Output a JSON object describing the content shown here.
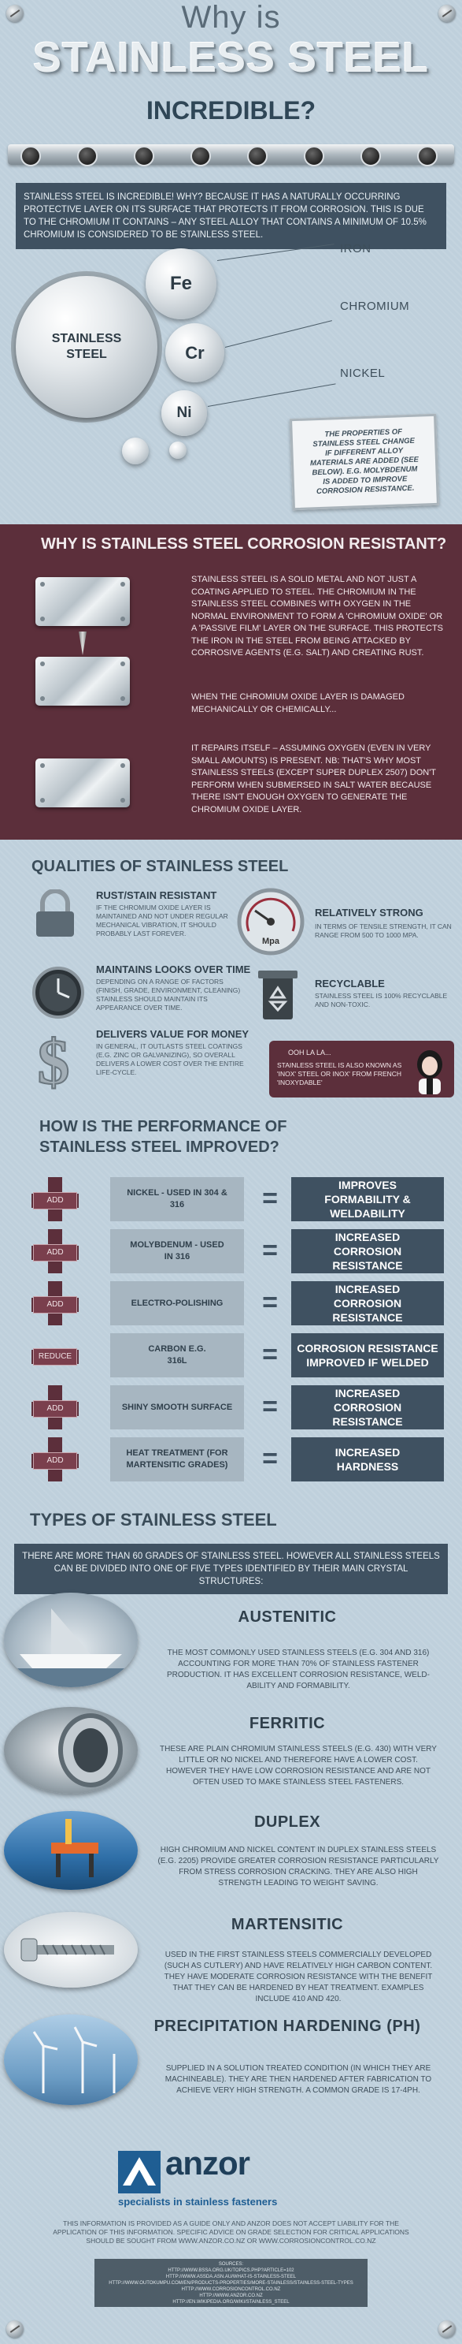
{
  "header": {
    "line1": "Why is",
    "line2": "STAINLESS STEEL",
    "line3": "INCREDIBLE?"
  },
  "intro": "STAINLESS STEEL IS INCREDIBLE! WHY? BECAUSE IT HAS A NATURALLY OCCURRING PROTECTIVE LAYER ON ITS SURFACE THAT PROTECTS IT FROM CORROSION. THIS IS DUE TO THE CHROMIUM IT CONTAINS – ANY STEEL ALLOY THAT CONTAINS A MINIMUM OF 10.5% CHROMIUM IS CONSIDERED TO BE STAINLESS STEEL.",
  "gears": {
    "main": "STAINLESS STEEL",
    "fe": "Fe",
    "cr": "Cr",
    "ni": "Ni",
    "iron": "IRON",
    "chromium": "CHROMIUM",
    "nickel": "NICKEL",
    "note": "THE PROPERTIES OF STAINLESS STEEL CHANGE IF DIFFERENT ALLOY MATERIALS ARE ADDED (SEE BELOW). E.G. MOLYBDENUM IS ADDED TO IMPROVE CORROSION RESISTANCE."
  },
  "corrosion": {
    "title": "WHY IS STAINLESS STEEL CORROSION RESISTANT?",
    "p1": "STAINLESS STEEL IS A SOLID METAL AND NOT JUST A COATING APPLIED TO STEEL. THE CHROMIUM IN THE STAINLESS STEEL COMBINES WITH OXYGEN IN THE NORMAL ENVIRONMENT TO FORM A 'CHROMIUM OXIDE' OR A 'PASSIVE FILM' LAYER ON THE SURFACE. THIS PROTECTS THE IRON IN THE STEEL FROM BEING ATTACKED BY CORROSIVE AGENTS (E.G. SALT) AND CREATING RUST.",
    "p2": "WHEN THE CHROMIUM OXIDE LAYER IS DAMAGED MECHANICALLY OR CHEMICALLY...",
    "p3": "IT REPAIRS ITSELF – ASSUMING OXYGEN (EVEN IN VERY SMALL AMOUNTS) IS PRESENT. NB: THAT'S WHY MOST STAINLESS STEELS (EXCEPT SUPER DUPLEX 2507) DON'T PERFORM WHEN SUBMERSED IN SALT WATER BECAUSE THERE ISN'T ENOUGH OXYGEN TO GENERATE THE CHROMIUM OXIDE LAYER."
  },
  "qualities": {
    "title": "QUALITIES OF STAINLESS STEEL",
    "items": [
      {
        "title": "RUST/STAIN RESISTANT",
        "text": "IF THE CHROMIUM OXIDE LAYER IS MAINTAINED AND NOT UNDER REGULAR MECHANICAL VIBRATION, IT SHOULD PROBABLY LAST FOREVER."
      },
      {
        "title": "RELATIVELY STRONG",
        "text": "IN TERMS OF TENSILE STRENGTH, IT CAN RANGE FROM 500 TO 1000 MPA."
      },
      {
        "title": "MAINTAINS LOOKS OVER TIME",
        "text": "DEPENDING ON A RANGE OF FACTORS (FINISH, GRADE, ENVIRONMENT, CLEANING) STAINLESS SHOULD MAINTAIN ITS APPEARANCE OVER TIME."
      },
      {
        "title": "RECYCLABLE",
        "text": "STAINLESS STEEL IS 100% RECYCLABLE AND NON-TOXIC."
      },
      {
        "title": "DELIVERS VALUE FOR MONEY",
        "text": "IN GENERAL, IT OUTLASTS STEEL COATINGS (E.G. ZINC OR GALVANIZING), SO OVERALL DELIVERS A LOWER COST OVER THE ENTIRE LIFE-CYCLE."
      }
    ],
    "gauge_unit": "Mpa",
    "ooh_title": "OOH LA LA...",
    "ooh_text": "STAINLESS STEEL IS ALSO KNOWN AS 'INOX' STEEL OR INOX' FROM FRENCH 'INOXYDABLE'"
  },
  "performance": {
    "title": "HOW IS THE PERFORMANCE OF STAINLESS STEEL IMPROVED?",
    "rows": [
      {
        "badge": "ADD",
        "left": "NICKEL - USED IN 304 & 316",
        "eq": "=",
        "right": "IMPROVES FORMABILITY & WELDABILITY"
      },
      {
        "badge": "ADD",
        "left": "MOLYBDENUM - USED IN 316",
        "eq": "=",
        "right": "INCREASED CORROSION RESISTANCE"
      },
      {
        "badge": "ADD",
        "left": "ELECTRO-POLISHING",
        "eq": "=",
        "right": "INCREASED CORROSION RESISTANCE"
      },
      {
        "badge": "REDUCE",
        "left": "CARBON E.G. 316L",
        "eq": "=",
        "right": "CORROSION RESISTANCE IMPROVED IF WELDED"
      },
      {
        "badge": "ADD",
        "left": "SHINY SMOOTH SURFACE",
        "eq": "=",
        "right": "INCREASED CORROSION RESISTANCE"
      },
      {
        "badge": "ADD",
        "left": "HEAT TREATMENT (FOR MARTENSITIC GRADES)",
        "eq": "=",
        "right": "INCREASED HARDNESS"
      }
    ]
  },
  "types": {
    "title": "TYPES OF STAINLESS STEEL",
    "intro": "THERE ARE MORE THAN 60 GRADES OF STAINLESS STEEL. HOWEVER ALL STAINLESS STEELS CAN BE DIVIDED INTO ONE OF FIVE TYPES IDENTIFIED BY THEIR MAIN CRYSTAL STRUCTURES:",
    "items": [
      {
        "name": "AUSTENITIC",
        "text": "THE MOST COMMONLY USED STAINLESS STEELS (E.G. 304 AND 316) ACCOUNTING FOR MORE THAN 70% OF STAINLESS FASTENER PRODUCTION. IT HAS EXCELLENT CORROSION RESISTANCE, WELD-ABILITY AND FORMABILITY."
      },
      {
        "name": "FERRITIC",
        "text": "THESE ARE PLAIN CHROMIUM STAINLESS STEELS (E.G. 430) WITH VERY LITTLE OR NO NICKEL AND THEREFORE HAVE A LOWER COST. HOWEVER THEY HAVE LOW CORROSION RESISTANCE AND ARE NOT OFTEN USED TO MAKE STAINLESS STEEL FASTENERS."
      },
      {
        "name": "DUPLEX",
        "text": "HIGH CHROMIUM AND NICKEL CONTENT IN DUPLEX STAINLESS STEELS (E.G. 2205) PROVIDE GREATER CORROSION RESISTANCE PARTICULARLY FROM STRESS CORROSION CRACKING. THEY ARE ALSO HIGH STRENGTH LEADING TO WEIGHT SAVING."
      },
      {
        "name": "MARTENSITIC",
        "text": "USED IN THE FIRST STAINLESS STEELS COMMERCIALLY DEVELOPED (SUCH AS CUTLERY) AND HAVE RELATIVELY HIGH CARBON CONTENT. THEY HAVE MODERATE CORROSION RESISTANCE WITH THE BENEFIT THAT THEY CAN BE HARDENED BY HEAT TREATMENT. EXAMPLES INCLUDE 410 AND 420."
      },
      {
        "name": "PRECIPITATION HARDENING (PH)",
        "text": "SUPPLIED IN A SOLUTION TREATED CONDITION (IN WHICH THEY ARE MACHINEABLE). THEY ARE THEN HARDENED AFTER FABRICATION TO ACHIEVE VERY HIGH STRENGTH. A COMMON GRADE IS 17-4PH."
      }
    ]
  },
  "brand": {
    "name": "anzor",
    "tagline": "specialists in stainless fasteners",
    "color": "#1f5e93"
  },
  "footer": {
    "disclaimer": "THIS INFORMATION IS PROVIDED AS A GUIDE ONLY AND ANZOR DOES NOT ACCEPT LIABILITY FOR THE APPLICATION OF THIS INFORMATION. SPECIFIC ADVICE ON GRADE SELECTION FOR CRITICAL APPLICATIONS SHOULD BE SOUGHT FROM WWW.ANZOR.CO.NZ OR WWW.CORROSIONCONTROL.CO.NZ",
    "sources_title": "SOURCES:",
    "sources": [
      "HTTP://WWW.BSSA.ORG.UK/TOPICS.PHP?ARTICLE=102",
      "HTTP://WWW.ASSDA.ASN.AU/WHAT-IS-STAINLESS-STEEL",
      "HTTP://WWW.OUTOKUMPU.COM/EN/PRODUCTS-PROPERTIES/MORE-STAINLESS/STAINLESS-STEEL-TYPES",
      "HTTP://WWW.CORROSIONCONTROL.CO.NZ",
      "HTTP://WWW.ANZOR.CO.NZ",
      "HTTP://EN.WIKIPEDIA.ORG/WIKI/STAINLESS_STEEL"
    ]
  }
}
